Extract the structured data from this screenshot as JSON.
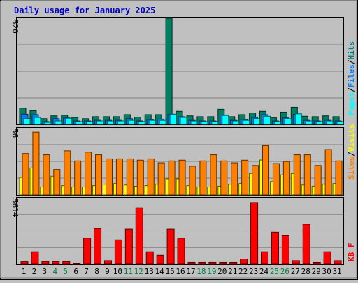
{
  "chart_data": [
    {
      "type": "bar",
      "title": "Daily usage for January 2025",
      "y_max_label": "520",
      "ylim": [
        0,
        520
      ],
      "legend": [
        {
          "label": "Pages",
          "color": "#00ffff"
        },
        {
          "label": "Files",
          "color": "#0080ff"
        },
        {
          "label": "Hits",
          "color": "#008080"
        }
      ],
      "legend_separator": "/",
      "categories": [
        "1",
        "2",
        "3",
        "4",
        "5",
        "6",
        "7",
        "8",
        "9",
        "10",
        "11",
        "12",
        "13",
        "14",
        "15",
        "16",
        "17",
        "18",
        "19",
        "20",
        "21",
        "22",
        "23",
        "24",
        "25",
        "26",
        "27",
        "28",
        "29",
        "30",
        "31"
      ],
      "weekend_days": [
        "4",
        "5",
        "11",
        "12",
        "18",
        "19",
        "25",
        "26"
      ],
      "series": [
        {
          "name": "Hits",
          "color": "#008060",
          "values": [
            80,
            67,
            28,
            42,
            45,
            34,
            28,
            38,
            38,
            38,
            48,
            36,
            48,
            48,
            520,
            64,
            42,
            38,
            38,
            74,
            38,
            48,
            56,
            64,
            32,
            60,
            84,
            40,
            38,
            42,
            38
          ]
        },
        {
          "name": "Files",
          "color": "#0080ff",
          "values": [
            50,
            48,
            14,
            28,
            32,
            17,
            17,
            20,
            20,
            20,
            28,
            17,
            24,
            26,
            50,
            38,
            20,
            17,
            17,
            46,
            20,
            24,
            34,
            48,
            17,
            32,
            50,
            20,
            17,
            20,
            17
          ]
        },
        {
          "name": "Pages",
          "color": "#00ffff",
          "values": [
            28,
            34,
            10,
            17,
            30,
            14,
            14,
            17,
            17,
            17,
            20,
            14,
            20,
            20,
            50,
            34,
            17,
            14,
            14,
            44,
            17,
            20,
            28,
            40,
            14,
            28,
            52,
            17,
            14,
            17,
            14
          ]
        }
      ]
    },
    {
      "type": "bar",
      "y_max_label": "56",
      "ylim": [
        0,
        56
      ],
      "legend": [
        {
          "label": "Sites",
          "color": "#ff8000"
        },
        {
          "label": "Visits",
          "color": "#ffff00"
        }
      ],
      "legend_separator": "/",
      "series": [
        {
          "name": "Visits",
          "color": "#ffff00",
          "values": [
            14.5,
            22.5,
            6.7,
            15.6,
            7.8,
            6.7,
            6.7,
            7.8,
            8.9,
            9.5,
            8.3,
            7.3,
            7.8,
            8.9,
            13.4,
            13.4,
            7.8,
            6.7,
            6.7,
            7.3,
            8.9,
            9.5,
            17.9,
            29.1,
            11.2,
            16.8,
            17.9,
            8.3,
            7.3,
            8.9,
            9.5
          ]
        },
        {
          "name": "Sites",
          "color": "#ff8000",
          "values": [
            34.6,
            52.4,
            33.5,
            21.2,
            36.8,
            28.4,
            35.7,
            33.5,
            30.1,
            30.1,
            30.1,
            29.0,
            30.1,
            26.8,
            28.4,
            29.0,
            24.0,
            28.4,
            33.5,
            28.4,
            26.8,
            29.0,
            24.6,
            41.2,
            26.2,
            27.9,
            33.5,
            33.5,
            24.6,
            37.9,
            28.4
          ]
        }
      ]
    },
    {
      "type": "bar",
      "y_max_label": "5614",
      "ylim": [
        0,
        5614
      ],
      "legend": [
        {
          "label": "KB F",
          "color": "#ff0000"
        }
      ],
      "series": [
        {
          "name": "KB F",
          "color": "#ff0000",
          "values": [
            200,
            1050,
            220,
            220,
            220,
            10,
            2200,
            3000,
            300,
            2050,
            2950,
            4775,
            1050,
            750,
            2950,
            2200,
            150,
            150,
            150,
            150,
            150,
            440,
            5204,
            1050,
            2700,
            2400,
            300,
            3370,
            150,
            1050,
            300
          ]
        }
      ]
    }
  ]
}
